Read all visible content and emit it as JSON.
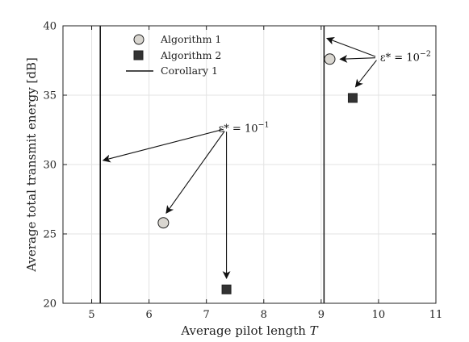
{
  "chart_data": {
    "type": "scatter",
    "xlabel": "Average pilot length T",
    "ylabel": "Average total transmit energy [dB]",
    "xlim": [
      4.5,
      11
    ],
    "ylim": [
      20,
      40
    ],
    "xticks": [
      5,
      6,
      7,
      8,
      9,
      10,
      11
    ],
    "yticks": [
      20,
      25,
      30,
      35,
      40
    ],
    "grid": true,
    "legend_position": "top-left",
    "series": [
      {
        "name": "Algorithm 1",
        "marker": "circle",
        "color": "#d9d6d0",
        "points": [
          {
            "x": 6.25,
            "y": 25.8
          },
          {
            "x": 9.15,
            "y": 37.6
          }
        ]
      },
      {
        "name": "Algorithm 2",
        "marker": "square",
        "color": "#333333",
        "points": [
          {
            "x": 7.35,
            "y": 21.0
          },
          {
            "x": 9.55,
            "y": 34.8
          }
        ]
      }
    ],
    "vlines": [
      {
        "name": "Corollary 1",
        "x": 5.15
      },
      {
        "name": "Corollary 1",
        "x": 9.05
      }
    ],
    "annotations": [
      {
        "text": "ε* = 10⁻¹",
        "base": "ε* = 10",
        "exp": "−1",
        "anchor": {
          "x": 7.35,
          "y": 32.6
        },
        "targets": [
          {
            "x": 5.2,
            "y": 30.3
          },
          {
            "x": 6.3,
            "y": 26.5
          },
          {
            "x": 7.35,
            "y": 21.8
          }
        ]
      },
      {
        "text": "ε* = 10⁻²",
        "base": "ε* = 10",
        "exp": "−2",
        "anchor": {
          "x": 10.0,
          "y": 37.7
        },
        "targets": [
          {
            "x": 9.1,
            "y": 39.1
          },
          {
            "x": 9.33,
            "y": 37.6
          },
          {
            "x": 9.6,
            "y": 35.6
          }
        ]
      }
    ]
  }
}
